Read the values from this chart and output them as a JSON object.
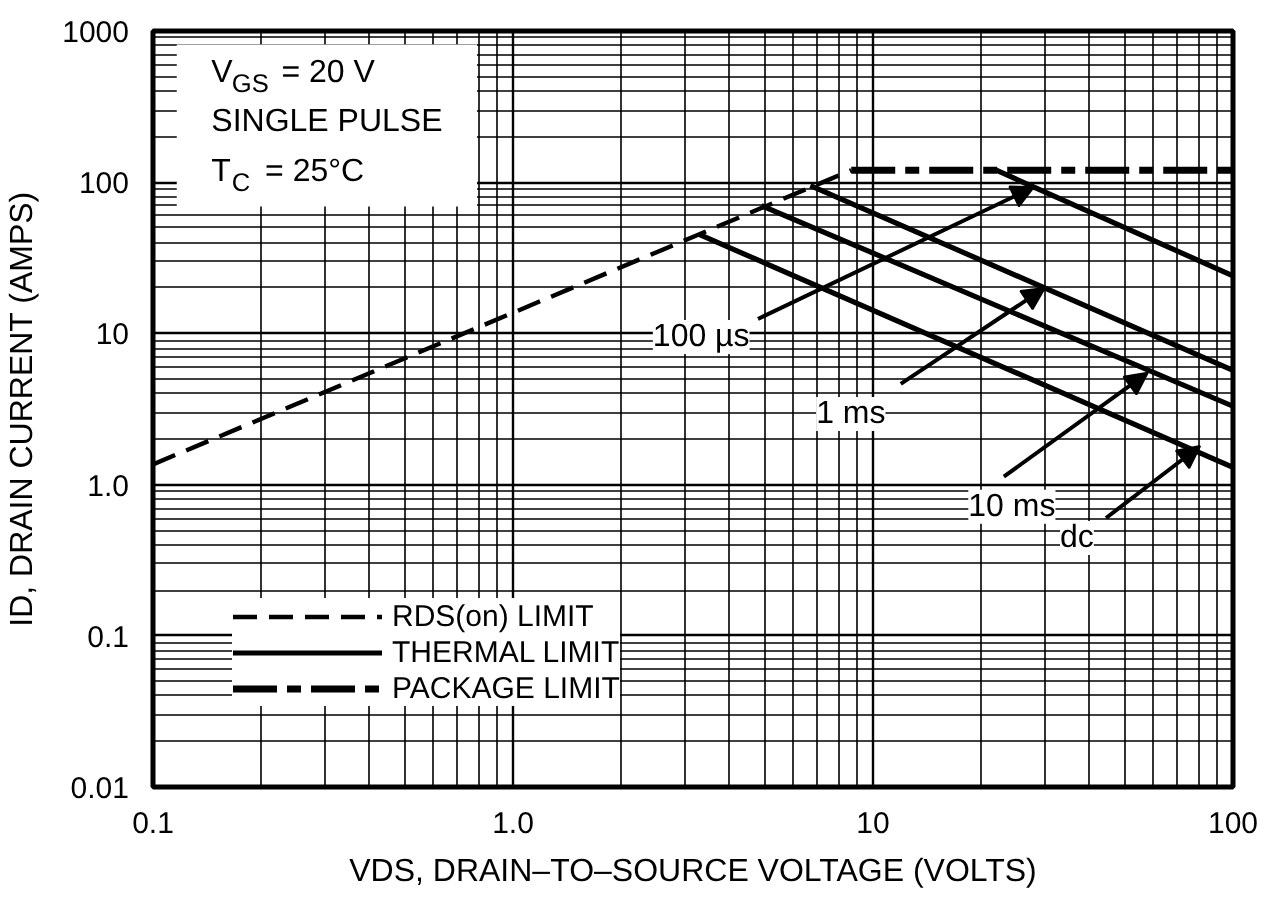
{
  "chart_data": {
    "type": "line",
    "xlabel": "VDS, DRAIN–TO–SOURCE VOLTAGE (VOLTS)",
    "ylabel": "ID, DRAIN CURRENT (AMPS)",
    "log": "xy",
    "grid": true,
    "legend": "bottom left",
    "xlim": [
      0.1,
      100
    ],
    "ylim": [
      0.01,
      1000
    ],
    "xticks": [
      0.1,
      {
        "value": 1,
        "label": "1.0"
      },
      10,
      100
    ],
    "yticks": [
      0.01,
      0.1,
      {
        "value": 1,
        "label": "1.0"
      },
      10,
      100,
      1000
    ],
    "series": [
      {
        "name": "RDS(on) LIMIT",
        "color": "#000000",
        "line_style": "dashed",
        "x": [
          0.1,
          8.7
        ],
        "values": [
          1.36,
          120
        ]
      },
      {
        "name": "THERMAL LIMIT",
        "color": "#000000",
        "line_style": "solid",
        "x": [
          22,
          100
        ],
        "values": [
          120,
          24
        ]
      },
      {
        "color": "#000000",
        "line_style": "solid",
        "x": [
          6.7,
          100
        ],
        "values": [
          95,
          5.7
        ]
      },
      {
        "color": "#000000",
        "line_style": "solid",
        "x": [
          4.9,
          100
        ],
        "values": [
          70,
          3.3
        ]
      },
      {
        "color": "#000000",
        "line_style": "solid",
        "x": [
          3.3,
          100
        ],
        "values": [
          45,
          1.3
        ]
      },
      {
        "name": "PACKAGE LIMIT",
        "color": "#000000",
        "line_style": "dashdot",
        "x": [
          8.7,
          100
        ],
        "values": [
          120,
          120
        ]
      }
    ],
    "annotations": [
      "V$_{GS}$ = 20 V",
      "SINGLE PULSE",
      "T$_{C}$ = 25°C",
      {
        "text": "100 µs",
        "x": 28,
        "y": 93
      },
      {
        "text": "1 ms",
        "x": 30,
        "y": 20
      },
      {
        "text": "10 ms",
        "x": 58,
        "y": 5.5
      },
      {
        "text": "dc",
        "x": 81,
        "y": 1.8
      }
    ]
  }
}
